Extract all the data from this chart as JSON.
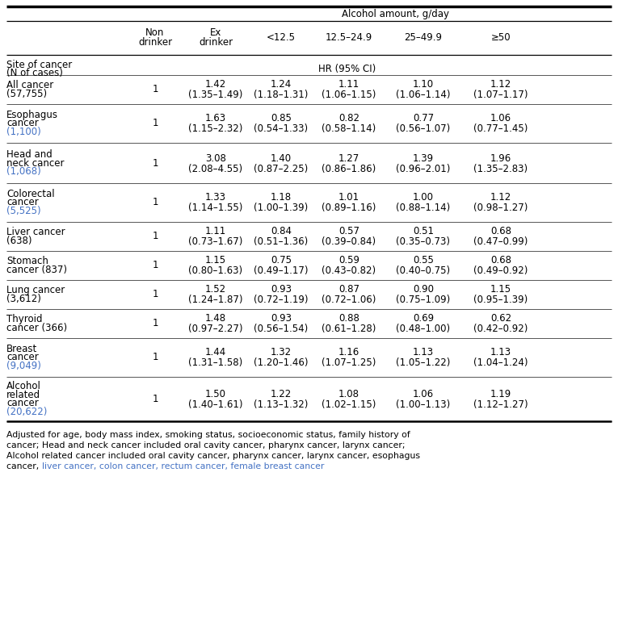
{
  "title_row": "Alcohol amount, g/day",
  "rows": [
    {
      "label": [
        "Site of cancer",
        "(N of cases)"
      ],
      "nondrinker": "",
      "data": [
        "",
        "",
        "",
        "",
        ""
      ],
      "hr_label": "HR (95% CI)",
      "is_header2": true
    },
    {
      "label": [
        "All cancer",
        "(57,755)"
      ],
      "nondrinker": "1",
      "data": [
        "1.42\n(1.35–1.49)",
        "1.24\n(1.18–1.31)",
        "1.11\n(1.06–1.15)",
        "1.10\n(1.06–1.14)",
        "1.12\n(1.07–1.17)"
      ],
      "label_count_blue": false
    },
    {
      "label": [
        "Esophagus",
        "cancer",
        "(1,100)"
      ],
      "nondrinker": "1",
      "data": [
        "1.63\n(1.15–2.32)",
        "0.85\n(0.54–1.33)",
        "0.82\n(0.58–1.14)",
        "0.77\n(0.56–1.07)",
        "1.06\n(0.77–1.45)"
      ],
      "label_count_blue": true
    },
    {
      "label": [
        "Head and",
        "neck cancer",
        "(1,068)"
      ],
      "nondrinker": "1",
      "data": [
        "3.08\n(2.08–4.55)",
        "1.40\n(0.87–2.25)",
        "1.27\n(0.86–1.86)",
        "1.39\n(0.96–2.01)",
        "1.96\n(1.35–2.83)"
      ],
      "label_count_blue": true
    },
    {
      "label": [
        "Colorectal",
        "cancer",
        "(5,525)"
      ],
      "nondrinker": "1",
      "data": [
        "1.33\n(1.14–1.55)",
        "1.18\n(1.00–1.39)",
        "1.01\n(0.89–1.16)",
        "1.00\n(0.88–1.14)",
        "1.12\n(0.98–1.27)"
      ],
      "label_count_blue": true
    },
    {
      "label": [
        "Liver cancer",
        "(638)"
      ],
      "nondrinker": "1",
      "data": [
        "1.11\n(0.73–1.67)",
        "0.84\n(0.51–1.36)",
        "0.57\n(0.39–0.84)",
        "0.51\n(0.35–0.73)",
        "0.68\n(0.47–0.99)"
      ],
      "label_count_blue": false
    },
    {
      "label": [
        "Stomach",
        "cancer (837)"
      ],
      "nondrinker": "1",
      "data": [
        "1.15\n(0.80–1.63)",
        "0.75\n(0.49–1.17)",
        "0.59\n(0.43–0.82)",
        "0.55\n(0.40–0.75)",
        "0.68\n(0.49–0.92)"
      ],
      "label_count_blue": false
    },
    {
      "label": [
        "Lung cancer",
        "(3,612)"
      ],
      "nondrinker": "1",
      "data": [
        "1.52\n(1.24–1.87)",
        "0.93\n(0.72–1.19)",
        "0.87\n(0.72–1.06)",
        "0.90\n(0.75–1.09)",
        "1.15\n(0.95–1.39)"
      ],
      "label_count_blue": false
    },
    {
      "label": [
        "Thyroid",
        "cancer (366)"
      ],
      "nondrinker": "1",
      "data": [
        "1.48\n(0.97–2.27)",
        "0.93\n(0.56–1.54)",
        "0.88\n(0.61–1.28)",
        "0.69\n(0.48–1.00)",
        "0.62\n(0.42–0.92)"
      ],
      "label_count_blue": false
    },
    {
      "label": [
        "Breast",
        "cancer",
        "(9,049)"
      ],
      "nondrinker": "1",
      "data": [
        "1.44\n(1.31–1.58)",
        "1.32\n(1.20–1.46)",
        "1.16\n(1.07–1.25)",
        "1.13\n(1.05–1.22)",
        "1.13\n(1.04–1.24)"
      ],
      "label_count_blue": true
    },
    {
      "label": [
        "Alcohol",
        "related",
        "cancer",
        "(20,622)"
      ],
      "nondrinker": "1",
      "data": [
        "1.50\n(1.40–1.61)",
        "1.22\n(1.13–1.32)",
        "1.08\n(1.02–1.15)",
        "1.06\n(1.00–1.13)",
        "1.19\n(1.12–1.27)"
      ],
      "label_count_blue": true
    }
  ],
  "col_headers": [
    "Non\ndrinker",
    "Ex\ndrinker",
    "<12.5",
    "12.5–24.9",
    "25–49.9",
    "≥50"
  ],
  "footnote_lines": [
    {
      "text": "Adjusted for age, body mass index, smoking status, socioeconomic status, family history of",
      "blue_segments": []
    },
    {
      "text": "cancer; Head and neck cancer included oral cavity cancer, pharynx cancer, larynx cancer;",
      "blue_segments": []
    },
    {
      "text": "Alcohol related cancer included oral cavity cancer, pharynx cancer, larynx cancer, esophagus",
      "blue_segments": []
    },
    {
      "text": "cancer, liver cancer, colon cancer, rectum cancer, female breast cancer",
      "blue_segments": [
        {
          "start": "liver cancer,",
          "end_after": "female breast cancer"
        }
      ]
    }
  ],
  "footnote_last_line_black": "cancer, ",
  "footnote_last_line_blue": "liver cancer, colon cancer, rectum cancer, female breast cancer",
  "blue_color": "#4472C4",
  "black_color": "#000000",
  "bg_color": "#ffffff",
  "fontsize": 8.5,
  "fn_fontsize": 7.8
}
